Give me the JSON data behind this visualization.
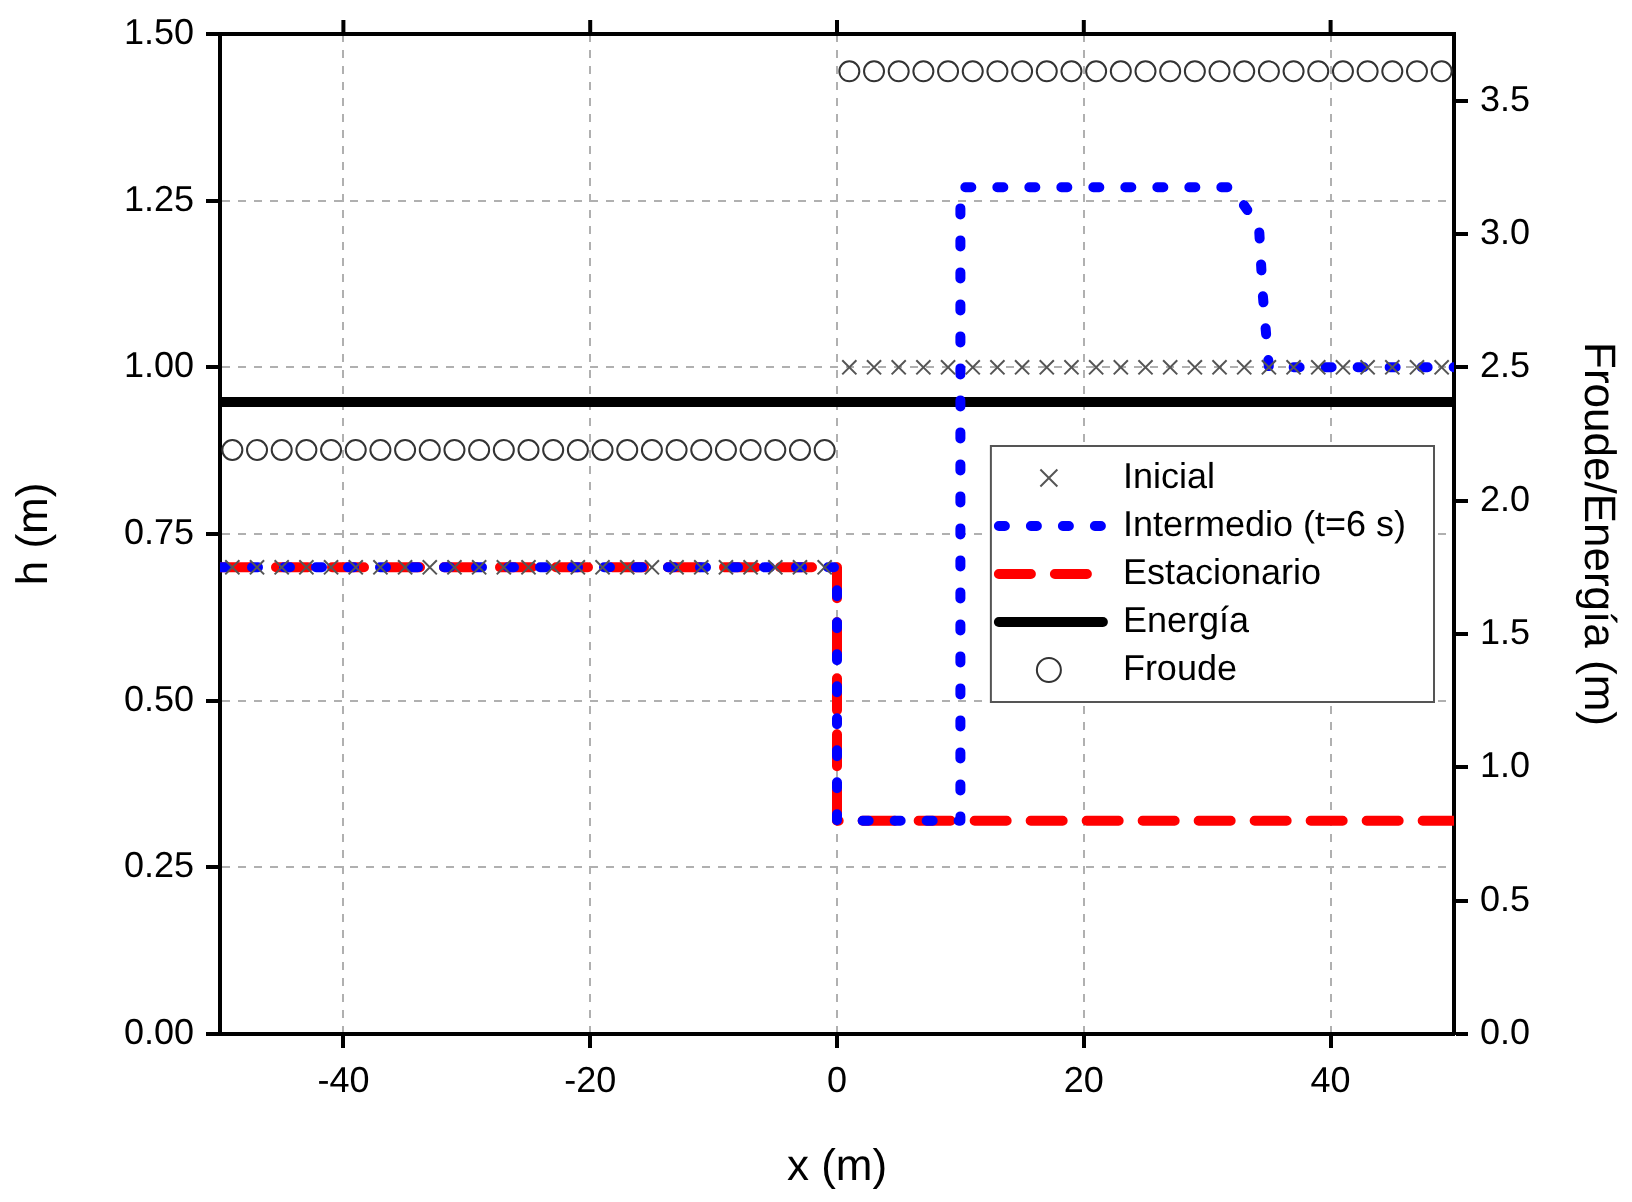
{
  "chart_data": {
    "type": "line",
    "xlabel": "x (m)",
    "ylabel": "h (m)",
    "y2label": "Froude/Energía (m)",
    "xlim": [
      -50,
      50
    ],
    "xticks": [
      -40,
      -20,
      0,
      20,
      40
    ],
    "ylim": [
      0,
      1.5
    ],
    "yticks": [
      {
        "value": 0,
        "label": "0.00"
      },
      {
        "value": 0.25,
        "label": "0.25"
      },
      {
        "value": 0.5,
        "label": "0.50"
      },
      {
        "value": 0.75,
        "label": "0.75"
      },
      {
        "value": 1,
        "label": "1.00"
      },
      {
        "value": 1.25,
        "label": "1.25"
      },
      {
        "value": 1.5,
        "label": "1.50"
      }
    ],
    "y2lim": [
      0,
      3.75
    ],
    "y2ticks": [
      {
        "value": 0,
        "label": "0.0"
      },
      0.5,
      {
        "value": 1,
        "label": "1.0"
      },
      1.5,
      {
        "value": 2,
        "label": "2.0"
      },
      2.5,
      {
        "value": 3,
        "label": "3.0"
      },
      3.5
    ],
    "grid": true,
    "legend": "right",
    "series": [
      {
        "name": "Inicial",
        "type": "scatter",
        "marker": "cross",
        "color": "#555555",
        "x": [
          -49,
          -47,
          -45,
          -43,
          -41,
          -39,
          -37,
          -35,
          -33,
          -31,
          -29,
          -27,
          -25,
          -23,
          -21,
          -19,
          -17,
          -15,
          -13,
          -11,
          -9,
          -7,
          -5,
          -3,
          -1,
          1,
          3,
          5,
          7,
          9,
          11,
          13,
          15,
          17,
          19,
          21,
          23,
          25,
          27,
          29,
          31,
          33,
          35,
          37,
          39,
          41,
          43,
          45,
          47,
          49
        ],
        "values": [
          0.7,
          0.7,
          0.7,
          0.7,
          0.7,
          0.7,
          0.7,
          0.7,
          0.7,
          0.7,
          0.7,
          0.7,
          0.7,
          0.7,
          0.7,
          0.7,
          0.7,
          0.7,
          0.7,
          0.7,
          0.7,
          0.7,
          0.7,
          0.7,
          0.7,
          1,
          1,
          1,
          1,
          1,
          1,
          1,
          1,
          1,
          1,
          1,
          1,
          1,
          1,
          1,
          1,
          1,
          1,
          1,
          1,
          1,
          1,
          1,
          1,
          1
        ]
      },
      {
        "name": "Intermedio (t=6 s)",
        "type": "line",
        "marker": "none",
        "line_style": "dotted",
        "color": "#0000ff",
        "x": [
          -50,
          0,
          0,
          10,
          10,
          32,
          34.2,
          34.5,
          35,
          50
        ],
        "values": [
          0.7,
          0.7,
          0.32,
          0.32,
          1.27,
          1.27,
          1.21,
          1.11,
          1.0,
          1.0
        ]
      },
      {
        "name": "Estacionario",
        "type": "line",
        "marker": "none",
        "line_style": "dashed",
        "color": "#ff0000",
        "x": [
          -50,
          0,
          0,
          50
        ],
        "values": [
          0.7,
          0.7,
          0.32,
          0.32
        ]
      },
      {
        "name": "Energía",
        "type": "line",
        "marker": "none",
        "line_style": "solid",
        "color": "#000000",
        "axis": "y2",
        "x": [
          -50,
          50
        ],
        "values": [
          2.37,
          2.37
        ]
      },
      {
        "name": "Froude",
        "type": "scatter",
        "marker": "circle",
        "color": "#333333",
        "axis": "y2",
        "x": [
          -49,
          -47,
          -45,
          -43,
          -41,
          -39,
          -37,
          -35,
          -33,
          -31,
          -29,
          -27,
          -25,
          -23,
          -21,
          -19,
          -17,
          -15,
          -13,
          -11,
          -9,
          -7,
          -5,
          -3,
          -1,
          1,
          3,
          5,
          7,
          9,
          11,
          13,
          15,
          17,
          19,
          21,
          23,
          25,
          27,
          29,
          31,
          33,
          35,
          37,
          39,
          41,
          43,
          45,
          47,
          49
        ],
        "values": [
          2.19,
          2.19,
          2.19,
          2.19,
          2.19,
          2.19,
          2.19,
          2.19,
          2.19,
          2.19,
          2.19,
          2.19,
          2.19,
          2.19,
          2.19,
          2.19,
          2.19,
          2.19,
          2.19,
          2.19,
          2.19,
          2.19,
          2.19,
          2.19,
          2.19,
          3.61,
          3.61,
          3.61,
          3.61,
          3.61,
          3.61,
          3.61,
          3.61,
          3.61,
          3.61,
          3.61,
          3.61,
          3.61,
          3.61,
          3.61,
          3.61,
          3.61,
          3.61,
          3.61,
          3.61,
          3.61,
          3.61,
          3.61,
          3.61,
          3.61
        ]
      }
    ]
  }
}
